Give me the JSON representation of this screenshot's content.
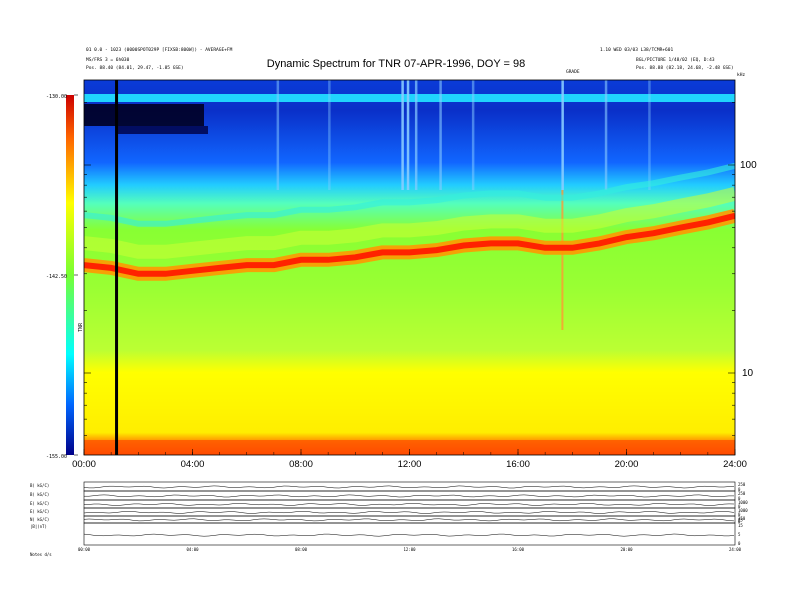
{
  "header": {
    "title": "Dynamic Spectrum for TNR 07-APR-1996, DOY = 98",
    "left_line1": "01 0.0 - 1023 (0000SPOT029P [FIXSB:800W]) - AVERAGE+FM",
    "left_line2": "MS/FRS 3 = 6h030",
    "left_line3": "Pos.    88.40 (84.01, 29.47, -1.85 GSE)",
    "right_line1": "1.10 WED 03/03           L38/TCMR+601",
    "right_line2": "BGL/PICTURE 1/48/02 (EQ, D:43",
    "right_line3": "Pos.    88.88 (82.18, 24.68, -2.48 GSE)",
    "event_label": "GRADE",
    "khz_label": "kHz"
  },
  "colorbar": {
    "ticks": [
      "-130.00",
      "-142.50",
      "-155.00"
    ],
    "label": "TNR",
    "colors": [
      "#cc0000",
      "#ff3300",
      "#ff9900",
      "#ffff00",
      "#66ff33",
      "#00ffff",
      "#0066ff",
      "#000088"
    ]
  },
  "chart_data": [
    {
      "type": "heatmap",
      "title": "Dynamic Spectrum for TNR 07-APR-1996, DOY = 98",
      "x_ticks": [
        "00:00",
        "04:00",
        "08:00",
        "12:00",
        "16:00",
        "20:00",
        "24:00"
      ],
      "x_range": [
        0,
        24
      ],
      "y_scale": "log",
      "y_ticks": [
        "100",
        "10"
      ],
      "y_unit": "kHz",
      "color_range": [
        -155.0,
        -130.0
      ],
      "color_ticks": [
        -130.0,
        -142.5,
        -155.0
      ],
      "plasma_line_hours": [
        0,
        1,
        2,
        3,
        4,
        5,
        6,
        7,
        8,
        9,
        10,
        11,
        12,
        13,
        14,
        15,
        16,
        17,
        18,
        19,
        20,
        21,
        22,
        23,
        24
      ],
      "plasma_line_khz": [
        33,
        32,
        30,
        30,
        31,
        32,
        33,
        33,
        35,
        35,
        36,
        38,
        38,
        39,
        41,
        42,
        42,
        40,
        40,
        42,
        45,
        47,
        50,
        53,
        57
      ],
      "marker_hour": 1.2
    },
    {
      "type": "line",
      "panel_labels": [
        "B( kG/C)",
        "B( kG/C)",
        "E( kG/C)",
        "E( kG/C)",
        "N( kG/C)",
        "|B|(nT)"
      ],
      "right_tick_groups": [
        [
          "250",
          "0"
        ],
        [
          "250",
          "0"
        ],
        [
          "1000",
          "0"
        ],
        [
          "1000",
          "0"
        ],
        [
          "250",
          "25",
          "0"
        ],
        [
          "15",
          "5",
          "0"
        ]
      ],
      "x_ticks": [
        "00:00",
        "04:00",
        "08:00",
        "12:00",
        "16:00",
        "20:00",
        "24:00"
      ],
      "footer_label": "Notes  d/s"
    }
  ]
}
